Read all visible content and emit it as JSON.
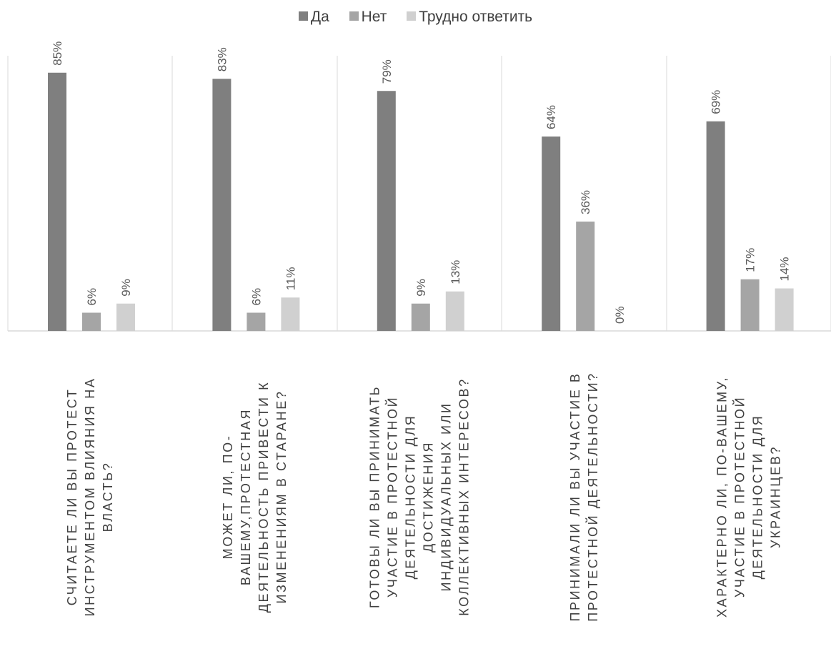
{
  "chart_data": {
    "type": "bar",
    "title": "",
    "xlabel": "",
    "ylabel": "",
    "ylim": [
      0,
      90
    ],
    "grid": false,
    "legend_position": "top",
    "categories": [
      [
        "СЧИТАЕТЕ ЛИ ВЫ ПРОТЕСТ",
        "ИНСТРУМЕНТОМ ВЛИЯНИЯ НА",
        "ВЛАСТЬ?"
      ],
      [
        "МОЖЕТ ЛИ, ПО-",
        "ВАШЕМУ,ПРОТЕСТНАЯ",
        "ДЕЯТЕЛЬНОСТЬ ПРИВЕСТИ К",
        "ИЗМЕНЕНИЯМ В СТАРАНЕ?"
      ],
      [
        "ГОТОВЫ ЛИ ВЫ ПРИНИМАТЬ",
        "УЧАСТИЕ В ПРОТЕСТНОЙ",
        "ДЕЯТЕЛЬНОСТИ ДЛЯ",
        "ДОСТИЖЕНИЯ",
        "ИНДИВИДУАЛЬНЫХ ИЛИ",
        "КОЛЛЕКТИВНЫХ ИНТЕРЕСОВ?"
      ],
      [
        "ПРИНИМАЛИ ЛИ ВЫ УЧАСТИЕ В",
        "ПРОТЕСТНОЙ ДЕЯТЕЛЬНОСТИ?"
      ],
      [
        "ХАРАКТЕРНО ЛИ, ПО-ВАШЕМУ,",
        "УЧАСТИЕ В ПРОТЕСТНОЙ",
        "ДЕЯТЕЛЬНОСТИ ДЛЯ",
        "УКРАИНЦЕВ?"
      ]
    ],
    "series": [
      {
        "name": "Да",
        "color": "#7f7f7f",
        "values": [
          85,
          83,
          79,
          64,
          69
        ],
        "labels": [
          "85%",
          "83%",
          "79%",
          "64%",
          "69%"
        ]
      },
      {
        "name": "Нет",
        "color": "#a5a5a5",
        "values": [
          6,
          6,
          9,
          36,
          17
        ],
        "labels": [
          "6%",
          "6%",
          "9%",
          "36%",
          "17%"
        ]
      },
      {
        "name": "Трудно ответить",
        "color": "#d0d0d0",
        "values": [
          9,
          11,
          13,
          0,
          14
        ],
        "labels": [
          "9%",
          "11%",
          "13%",
          "0%",
          "14%"
        ]
      }
    ]
  }
}
